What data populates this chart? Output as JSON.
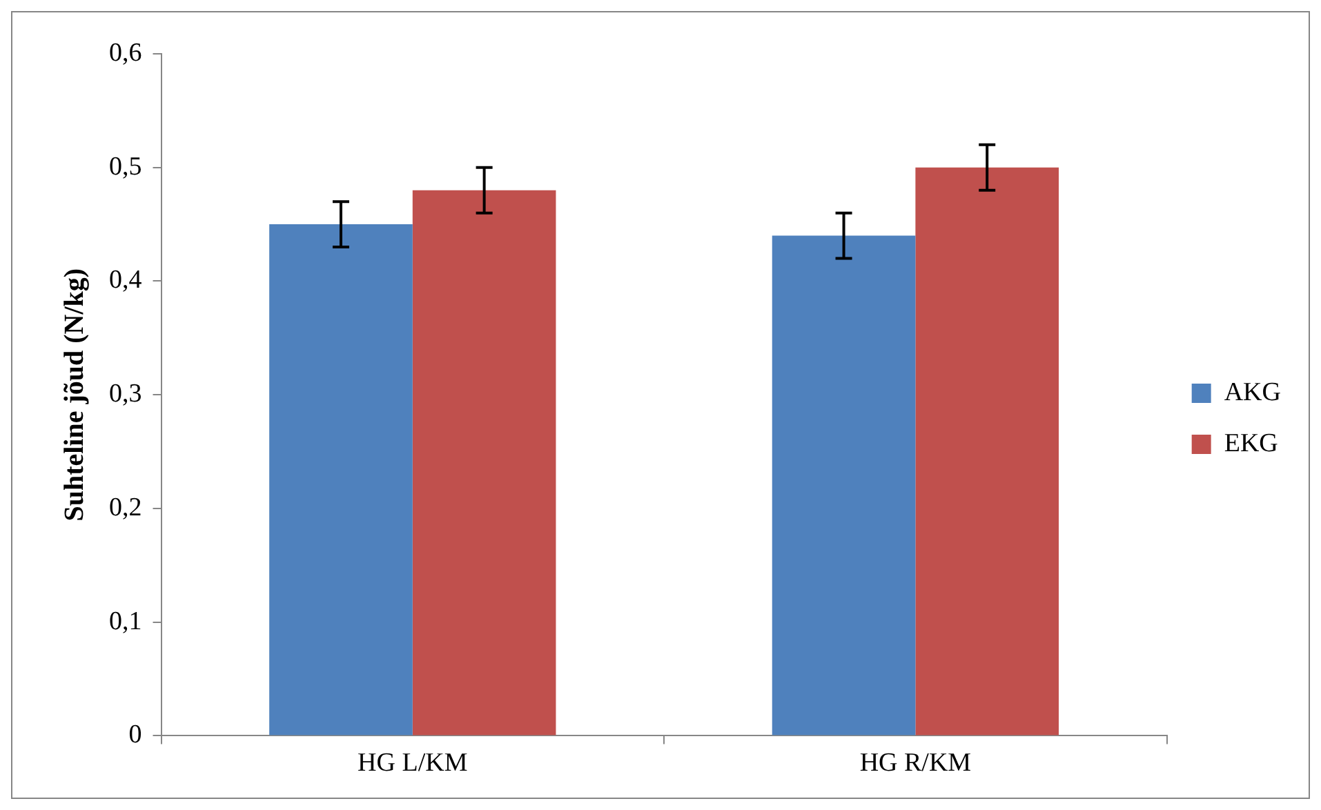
{
  "chart_data": {
    "type": "bar",
    "ylabel": "Suhteline jõud (N/kg)",
    "categories": [
      "HG L/KM",
      "HG R/KM"
    ],
    "series": [
      {
        "name": "AKG",
        "color": "#4f81bd",
        "values": [
          0.45,
          0.44
        ],
        "errors": [
          0.02,
          0.02
        ]
      },
      {
        "name": "EKG",
        "color": "#c0504d",
        "values": [
          0.48,
          0.5
        ],
        "errors": [
          0.02,
          0.02
        ]
      }
    ],
    "ylim": [
      0,
      0.6
    ],
    "yticks": [
      {
        "value": 0,
        "label": "0"
      },
      {
        "value": 0.1,
        "label": "0,1"
      },
      {
        "value": 0.2,
        "label": "0,2"
      },
      {
        "value": 0.3,
        "label": "0,3"
      },
      {
        "value": 0.4,
        "label": "0,4"
      },
      {
        "value": 0.5,
        "label": "0,5"
      },
      {
        "value": 0.6,
        "label": "0,6"
      }
    ],
    "grid": false,
    "legend": "right"
  }
}
